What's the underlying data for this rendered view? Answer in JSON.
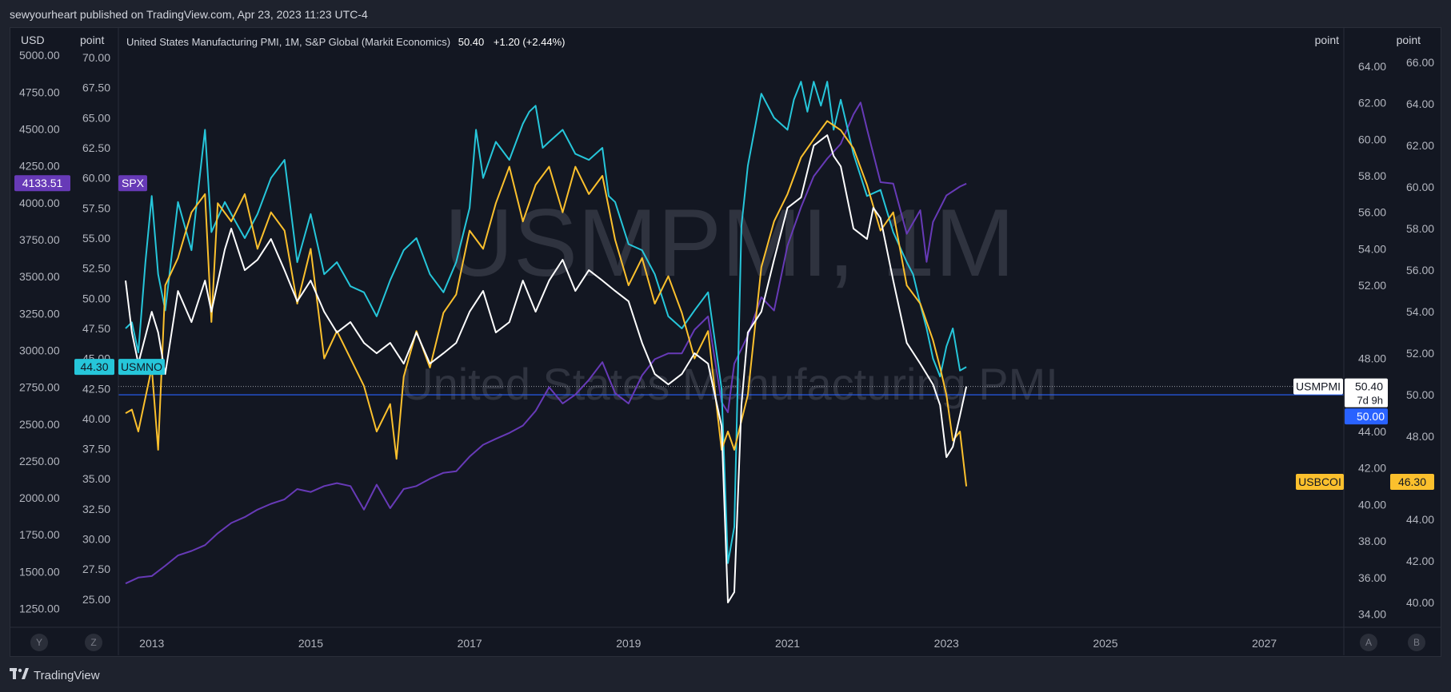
{
  "header": {
    "published": "sewyourheart published on TradingView.com, Apr 23, 2023 11:23 UTC-4"
  },
  "legend": {
    "title": "United States Manufacturing PMI, 1M, S&P Global (Markit Economics)",
    "value": "50.40",
    "change": "+1.20 (+2.44%)"
  },
  "watermark": {
    "symbol": "USMPMI, 1M",
    "description": "United States Manufacturing PMI"
  },
  "axes": {
    "left_usd": {
      "header": "USD",
      "ticks": [
        "5000.00",
        "4750.00",
        "4500.00",
        "4250.00",
        "4000.00",
        "3750.00",
        "3500.00",
        "3250.00",
        "3000.00",
        "2750.00",
        "2500.00",
        "2250.00",
        "2000.00",
        "1750.00",
        "1500.00",
        "1250.00"
      ]
    },
    "left_point": {
      "header": "point",
      "ticks": [
        "70.00",
        "67.50",
        "65.00",
        "62.50",
        "60.00",
        "57.50",
        "55.00",
        "52.50",
        "50.00",
        "47.50",
        "45.00",
        "42.50",
        "40.00",
        "37.50",
        "35.00",
        "32.50",
        "30.00",
        "27.50",
        "25.00"
      ]
    },
    "right_point1": {
      "header": "point",
      "ticks": [
        "64.00",
        "62.00",
        "60.00",
        "58.00",
        "56.00",
        "54.00",
        "52.00",
        "48.00",
        "46.00",
        "44.00",
        "42.00",
        "40.00",
        "38.00",
        "36.00",
        "34.00"
      ]
    },
    "right_point2": {
      "header": "point",
      "ticks": [
        "66.00",
        "64.00",
        "62.00",
        "60.00",
        "58.00",
        "56.00",
        "54.00",
        "52.00",
        "50.00",
        "48.00",
        "46.00",
        "44.00",
        "42.00",
        "40.00"
      ]
    },
    "x_ticks": [
      "2013",
      "2015",
      "2017",
      "2019",
      "2021",
      "2023",
      "2025",
      "2027"
    ],
    "buttons": [
      "Y",
      "Z",
      "A",
      "B"
    ]
  },
  "labels": {
    "spx_price": "4133.51",
    "spx_name": "SPX",
    "usmno_price": "44.30",
    "usmno_name": "USMNO",
    "usmpmi_name": "USMPMI",
    "usmpmi_price": "50.40",
    "usmpmi_countdown": "7d 9h",
    "hline_price": "50.00",
    "usbcoi_name": "USBCOI",
    "usbcoi_price": "46.30"
  },
  "colors": {
    "background": "#131722",
    "spx": "#673ab7",
    "usmno": "#26c6da",
    "usbcoi": "#fbc02d",
    "usmpmi": "#ffffff",
    "hline": "#2962ff"
  },
  "chart_data": {
    "type": "line",
    "x_range": [
      2012.6,
      2028.0
    ],
    "series": [
      {
        "name": "SPX",
        "axis": "USD",
        "ylim": [
          1150,
          5050
        ],
        "x": [
          2012.67,
          2012.83,
          2013.0,
          2013.17,
          2013.33,
          2013.5,
          2013.67,
          2013.83,
          2014.0,
          2014.17,
          2014.33,
          2014.5,
          2014.67,
          2014.83,
          2015.0,
          2015.17,
          2015.33,
          2015.5,
          2015.67,
          2015.83,
          2016.0,
          2016.17,
          2016.33,
          2016.5,
          2016.67,
          2016.83,
          2017.0,
          2017.17,
          2017.33,
          2017.5,
          2017.67,
          2017.83,
          2018.0,
          2018.17,
          2018.33,
          2018.5,
          2018.67,
          2018.83,
          2019.0,
          2019.17,
          2019.33,
          2019.5,
          2019.67,
          2019.83,
          2020.0,
          2020.17,
          2020.25,
          2020.33,
          2020.5,
          2020.67,
          2020.83,
          2021.0,
          2021.17,
          2021.33,
          2021.5,
          2021.67,
          2021.83,
          2021.92,
          2022.0,
          2022.17,
          2022.33,
          2022.5,
          2022.67,
          2022.75,
          2022.83,
          2023.0,
          2023.17,
          2023.25
        ],
        "y": [
          1420,
          1460,
          1470,
          1540,
          1610,
          1640,
          1680,
          1760,
          1830,
          1870,
          1920,
          1960,
          1990,
          2060,
          2040,
          2080,
          2100,
          2080,
          1920,
          2090,
          1930,
          2060,
          2080,
          2130,
          2170,
          2180,
          2280,
          2360,
          2400,
          2440,
          2490,
          2590,
          2750,
          2640,
          2700,
          2800,
          2920,
          2710,
          2640,
          2830,
          2940,
          2980,
          2980,
          3140,
          3230,
          2650,
          2580,
          2910,
          3100,
          3360,
          3270,
          3710,
          3970,
          4180,
          4300,
          4400,
          4600,
          4680,
          4500,
          4140,
          4130,
          3790,
          3950,
          3600,
          3870,
          4050,
          4110,
          4130
        ]
      },
      {
        "name": "USMNO",
        "axis": "point (left)",
        "ylim": [
          23.0,
          70.8
        ],
        "x": [
          2012.67,
          2012.75,
          2012.83,
          2012.92,
          2013.0,
          2013.08,
          2013.17,
          2013.33,
          2013.5,
          2013.67,
          2013.75,
          2013.92,
          2014.0,
          2014.17,
          2014.33,
          2014.5,
          2014.67,
          2014.83,
          2015.0,
          2015.17,
          2015.33,
          2015.5,
          2015.67,
          2015.83,
          2016.0,
          2016.17,
          2016.33,
          2016.5,
          2016.67,
          2016.83,
          2017.0,
          2017.08,
          2017.17,
          2017.33,
          2017.5,
          2017.67,
          2017.75,
          2017.83,
          2017.92,
          2018.0,
          2018.17,
          2018.33,
          2018.5,
          2018.67,
          2018.75,
          2018.83,
          2019.0,
          2019.17,
          2019.33,
          2019.5,
          2019.67,
          2019.83,
          2020.0,
          2020.17,
          2020.25,
          2020.33,
          2020.42,
          2020.5,
          2020.67,
          2020.83,
          2021.0,
          2021.08,
          2021.17,
          2021.25,
          2021.33,
          2021.42,
          2021.5,
          2021.58,
          2021.67,
          2021.83,
          2022.0,
          2022.17,
          2022.33,
          2022.5,
          2022.58,
          2022.67,
          2022.75,
          2022.83,
          2022.92,
          2023.0,
          2023.08,
          2023.17,
          2023.25
        ],
        "y": [
          47.5,
          48.0,
          45.5,
          53.0,
          58.5,
          52.0,
          49.0,
          58.0,
          54.0,
          64.0,
          55.5,
          58.0,
          57.0,
          55.0,
          57.0,
          60.0,
          61.5,
          53.0,
          57.0,
          52.0,
          53.0,
          51.0,
          50.5,
          48.5,
          51.5,
          54.0,
          55.0,
          52.0,
          50.5,
          53.0,
          57.5,
          64.0,
          60.0,
          63.0,
          61.5,
          64.5,
          65.5,
          66.0,
          62.5,
          63.0,
          64.0,
          62.0,
          61.5,
          62.5,
          58.5,
          58.0,
          54.5,
          54.0,
          52.0,
          48.5,
          47.5,
          49.0,
          50.5,
          42.5,
          28.0,
          31.0,
          56.0,
          61.0,
          67.0,
          65.0,
          64.0,
          66.5,
          68.0,
          65.5,
          68.0,
          66.0,
          68.0,
          64.0,
          66.5,
          62.0,
          58.5,
          59.0,
          55.5,
          53.0,
          52.0,
          49.5,
          47.5,
          45.0,
          43.5,
          46.0,
          47.5,
          44.0,
          44.3
        ]
      },
      {
        "name": "USBCOI",
        "axis": "point (right inner)",
        "ylim": [
          33.5,
          65.0
        ],
        "x": [
          2012.67,
          2012.75,
          2012.83,
          2013.0,
          2013.08,
          2013.17,
          2013.33,
          2013.5,
          2013.67,
          2013.75,
          2013.83,
          2014.0,
          2014.17,
          2014.33,
          2014.5,
          2014.67,
          2014.83,
          2015.0,
          2015.17,
          2015.33,
          2015.5,
          2015.67,
          2015.83,
          2016.0,
          2016.08,
          2016.17,
          2016.33,
          2016.5,
          2016.67,
          2016.83,
          2017.0,
          2017.17,
          2017.33,
          2017.5,
          2017.67,
          2017.83,
          2018.0,
          2018.17,
          2018.33,
          2018.5,
          2018.67,
          2018.83,
          2019.0,
          2019.17,
          2019.33,
          2019.5,
          2019.67,
          2019.83,
          2020.0,
          2020.17,
          2020.25,
          2020.33,
          2020.5,
          2020.67,
          2020.83,
          2021.0,
          2021.17,
          2021.33,
          2021.5,
          2021.67,
          2021.83,
          2022.0,
          2022.17,
          2022.33,
          2022.5,
          2022.67,
          2022.83,
          2022.92,
          2023.0,
          2023.08,
          2023.17,
          2023.25
        ],
        "y": [
          45.0,
          45.2,
          44.0,
          47.5,
          43.0,
          52.0,
          53.5,
          56.0,
          57.0,
          50.0,
          56.5,
          55.5,
          57.0,
          54.0,
          56.0,
          55.0,
          51.0,
          54.0,
          48.0,
          49.5,
          48.0,
          46.5,
          44.0,
          45.5,
          42.5,
          47.0,
          49.5,
          47.5,
          50.5,
          51.5,
          55.0,
          54.0,
          56.5,
          58.5,
          55.5,
          57.5,
          58.5,
          56.0,
          58.5,
          57.0,
          58.0,
          54.5,
          52.0,
          53.5,
          51.0,
          52.5,
          50.5,
          48.0,
          49.5,
          43.0,
          44.0,
          43.0,
          46.0,
          53.0,
          55.5,
          57.0,
          59.0,
          60.0,
          61.0,
          60.5,
          59.5,
          57.5,
          55.0,
          56.0,
          52.0,
          51.0,
          49.0,
          47.5,
          46.0,
          43.5,
          44.0,
          41.0
        ]
      },
      {
        "name": "USMPMI",
        "axis": "point (right outer)",
        "ylim": [
          39.0,
          66.7
        ],
        "x": [
          2012.67,
          2012.75,
          2012.83,
          2013.0,
          2013.08,
          2013.17,
          2013.33,
          2013.5,
          2013.67,
          2013.75,
          2013.92,
          2014.0,
          2014.17,
          2014.33,
          2014.5,
          2014.67,
          2014.83,
          2015.0,
          2015.17,
          2015.33,
          2015.5,
          2015.67,
          2015.83,
          2016.0,
          2016.17,
          2016.33,
          2016.5,
          2016.67,
          2016.83,
          2017.0,
          2017.17,
          2017.33,
          2017.5,
          2017.67,
          2017.83,
          2018.0,
          2018.17,
          2018.33,
          2018.5,
          2018.67,
          2018.83,
          2019.0,
          2019.17,
          2019.33,
          2019.5,
          2019.67,
          2019.83,
          2020.0,
          2020.17,
          2020.25,
          2020.33,
          2020.42,
          2020.5,
          2020.67,
          2020.83,
          2021.0,
          2021.17,
          2021.33,
          2021.5,
          2021.58,
          2021.67,
          2021.83,
          2022.0,
          2022.08,
          2022.17,
          2022.33,
          2022.5,
          2022.67,
          2022.83,
          2022.92,
          2023.0,
          2023.08,
          2023.17,
          2023.25
        ],
        "y": [
          55.5,
          53.0,
          51.5,
          54.0,
          53.0,
          51.0,
          55.0,
          53.5,
          55.5,
          54.0,
          57.0,
          58.0,
          56.0,
          56.5,
          57.5,
          56.0,
          54.5,
          55.5,
          54.0,
          53.0,
          53.5,
          52.5,
          52.0,
          52.5,
          51.5,
          53.0,
          51.5,
          52.0,
          52.5,
          54.0,
          55.0,
          53.0,
          53.5,
          55.5,
          54.0,
          55.5,
          56.5,
          55.0,
          56.0,
          55.5,
          55.0,
          54.5,
          52.5,
          51.0,
          50.5,
          51.0,
          52.0,
          51.5,
          48.5,
          40.0,
          40.5,
          49.5,
          53.0,
          54.0,
          56.5,
          59.0,
          59.5,
          62.0,
          62.5,
          61.5,
          61.0,
          58.0,
          57.5,
          59.0,
          58.5,
          55.5,
          52.5,
          51.5,
          50.5,
          49.5,
          47.0,
          47.5,
          49.0,
          50.4
        ]
      }
    ],
    "reference_line": {
      "name": "hline",
      "value": 50.0
    }
  }
}
